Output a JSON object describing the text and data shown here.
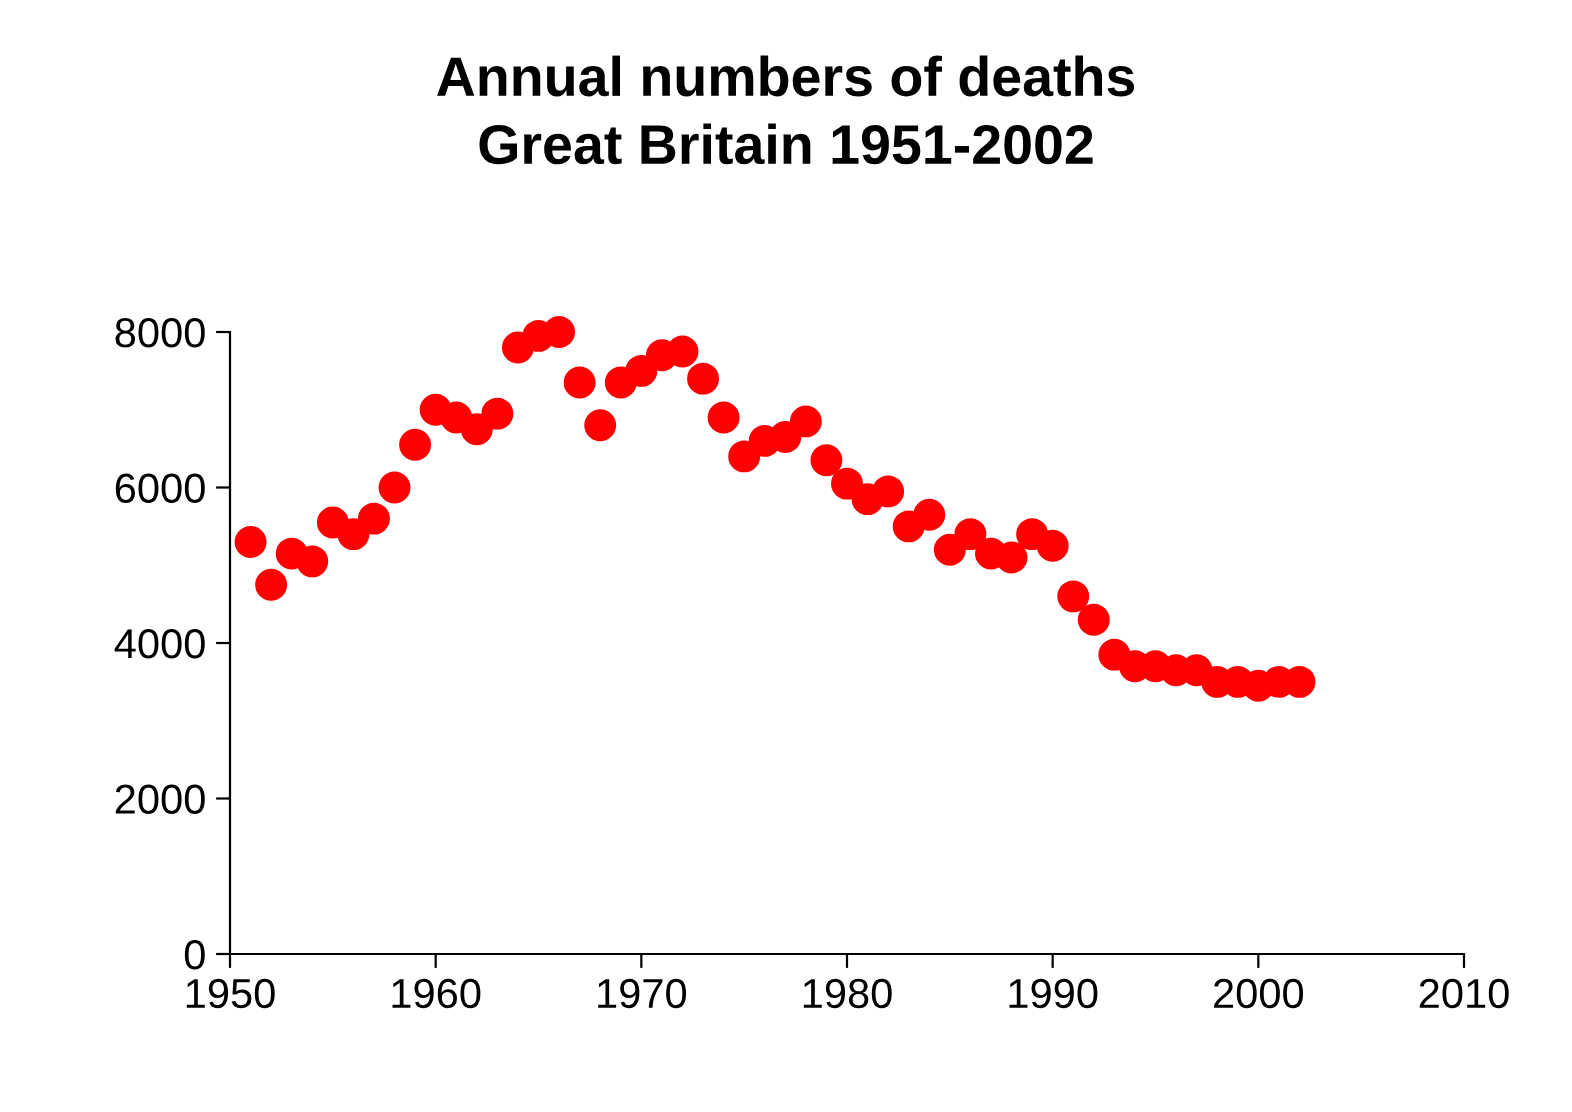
{
  "chart_data": {
    "type": "scatter",
    "title": "Annual numbers of deaths\nGreat Britain 1951-2002",
    "x": [
      1951,
      1952,
      1953,
      1954,
      1955,
      1956,
      1957,
      1958,
      1959,
      1960,
      1961,
      1962,
      1963,
      1964,
      1965,
      1966,
      1967,
      1968,
      1969,
      1970,
      1971,
      1972,
      1973,
      1974,
      1975,
      1976,
      1977,
      1978,
      1979,
      1980,
      1981,
      1982,
      1983,
      1984,
      1985,
      1986,
      1987,
      1988,
      1989,
      1990,
      1991,
      1992,
      1993,
      1994,
      1995,
      1996,
      1997,
      1998,
      1999,
      2000,
      2001,
      2002
    ],
    "series": [
      {
        "color": "#ff0000",
        "values": [
          5300,
          4750,
          5150,
          5050,
          5550,
          5400,
          5600,
          6000,
          6550,
          7000,
          6900,
          6750,
          6950,
          7800,
          7950,
          8000,
          7350,
          6800,
          7350,
          7500,
          7700,
          7750,
          7400,
          6900,
          6400,
          6600,
          6650,
          6850,
          6350,
          6050,
          5850,
          5950,
          5500,
          5650,
          5200,
          5400,
          5150,
          5100,
          5400,
          5250,
          4600,
          4300,
          3850,
          3700,
          3700,
          3650,
          3650,
          3500,
          3500,
          3450,
          3500,
          3500
        ]
      }
    ],
    "xlim": [
      1950,
      2010
    ],
    "xticks": [
      1950,
      1960,
      1970,
      1980,
      1990,
      2000,
      2010
    ],
    "ylim": [
      0,
      8000
    ],
    "yticks": [
      0,
      2000,
      4000,
      6000,
      8000
    ],
    "marker": "circle",
    "grid": false,
    "legend": false
  }
}
